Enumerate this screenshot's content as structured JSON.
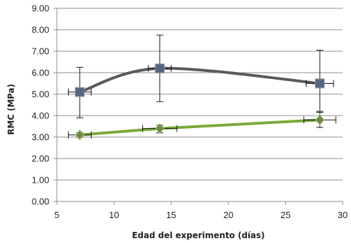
{
  "chart_data": {
    "type": "line",
    "title": "",
    "xlabel": "Edad del experimento (días)",
    "ylabel": "RMC (MPa)",
    "xlim": [
      5,
      30
    ],
    "ylim": [
      0,
      9
    ],
    "x_ticks": [
      "5",
      "10",
      "15",
      "20",
      "25",
      "30"
    ],
    "x_tick_values": [
      5,
      10,
      15,
      20,
      25,
      30
    ],
    "y_ticks": [
      "0.00",
      "1.00",
      "2.00",
      "3.00",
      "4.00",
      "5.00",
      "6.00",
      "7.00",
      "8.00",
      "9.00"
    ],
    "y_tick_values": [
      0,
      1,
      2,
      3,
      4,
      5,
      6,
      7,
      8,
      9
    ],
    "grid": "horizontal",
    "legend": "none",
    "series": [
      {
        "color": "#5a5a5a",
        "marker": "square",
        "marker_color": "#56677d",
        "smooth": true,
        "x": [
          7,
          14,
          28
        ],
        "y": [
          5.1,
          6.2,
          5.5
        ],
        "y_err_low": [
          3.9,
          4.65,
          4.2
        ],
        "y_err_high": [
          6.25,
          7.75,
          7.05
        ],
        "x_err": [
          1.0,
          1.0,
          1.2
        ]
      },
      {
        "color": "#7aa93b",
        "marker": "diamond",
        "marker_color": "#6a8a45",
        "smooth": false,
        "x": [
          7,
          14,
          28
        ],
        "y": [
          3.1,
          3.4,
          3.8
        ],
        "y_err_low": [
          3.0,
          3.2,
          3.45
        ],
        "y_err_high": [
          3.2,
          3.55,
          4.15
        ],
        "x_err": [
          1.0,
          1.5,
          1.4
        ]
      }
    ]
  }
}
